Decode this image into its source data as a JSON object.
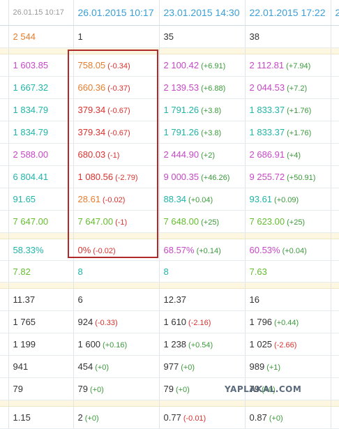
{
  "header": [
    "26.01.15 10:17",
    "26.01.2015 10:17",
    "23.01.2015 14:30",
    "22.01.2015 17:22"
  ],
  "section1": [
    {
      "cells": [
        {
          "v": "2 544",
          "c": "orange"
        },
        {
          "v": "1",
          "c": "dark"
        },
        {
          "v": "35",
          "c": "dark"
        },
        {
          "v": "38",
          "c": "dark"
        }
      ]
    }
  ],
  "section2": [
    {
      "cells": [
        {
          "v": "1 603.85",
          "c": "purple"
        },
        {
          "v": "758.05",
          "d": "(-0.34)",
          "c": "orange",
          "dc": "red"
        },
        {
          "v": "2 100.42",
          "d": "(+6.91)",
          "c": "purple",
          "dc": "dgreen"
        },
        {
          "v": "2 112.81",
          "d": "(+7.94)",
          "c": "purple",
          "dc": "dgreen"
        }
      ]
    },
    {
      "cells": [
        {
          "v": "1 667.32",
          "c": "teal"
        },
        {
          "v": "660.36",
          "d": "(-0.37)",
          "c": "orange",
          "dc": "red"
        },
        {
          "v": "2 139.53",
          "d": "(+6.88)",
          "c": "purple",
          "dc": "dgreen"
        },
        {
          "v": "2 044.53",
          "d": "(+7.2)",
          "c": "purple",
          "dc": "dgreen"
        }
      ]
    },
    {
      "cells": [
        {
          "v": "1 834.79",
          "c": "teal"
        },
        {
          "v": "379.34",
          "d": "(-0.67)",
          "c": "red",
          "dc": "red"
        },
        {
          "v": "1 791.26",
          "d": "(+3.8)",
          "c": "teal",
          "dc": "dgreen"
        },
        {
          "v": "1 833.37",
          "d": "(+1.76)",
          "c": "teal",
          "dc": "dgreen"
        }
      ]
    },
    {
      "cells": [
        {
          "v": "1 834.79",
          "c": "teal"
        },
        {
          "v": "379.34",
          "d": "(-0.67)",
          "c": "red",
          "dc": "red"
        },
        {
          "v": "1 791.26",
          "d": "(+3.8)",
          "c": "teal",
          "dc": "dgreen"
        },
        {
          "v": "1 833.37",
          "d": "(+1.76)",
          "c": "teal",
          "dc": "dgreen"
        }
      ]
    },
    {
      "cells": [
        {
          "v": "2 588.00",
          "c": "purple"
        },
        {
          "v": "680.03",
          "d": "(-1)",
          "c": "red",
          "dc": "red"
        },
        {
          "v": "2 444.90",
          "d": "(+2)",
          "c": "purple",
          "dc": "dgreen"
        },
        {
          "v": "2 686.91",
          "d": "(+4)",
          "c": "purple",
          "dc": "dgreen"
        }
      ]
    },
    {
      "cells": [
        {
          "v": "6 804.41",
          "c": "teal"
        },
        {
          "v": "1 080.56",
          "d": "(-2.79)",
          "c": "red",
          "dc": "red"
        },
        {
          "v": "9 000.35",
          "d": "(+46.26)",
          "c": "purple",
          "dc": "dgreen"
        },
        {
          "v": "9 255.72",
          "d": "(+50.91)",
          "c": "purple",
          "dc": "dgreen"
        }
      ]
    },
    {
      "cells": [
        {
          "v": "91.65",
          "c": "teal"
        },
        {
          "v": "28.61",
          "d": "(-0.02)",
          "c": "orange",
          "dc": "red"
        },
        {
          "v": "88.34",
          "d": "(+0.04)",
          "c": "teal",
          "dc": "dgreen"
        },
        {
          "v": "93.61",
          "d": "(+0.09)",
          "c": "teal",
          "dc": "dgreen"
        }
      ]
    },
    {
      "cells": [
        {
          "v": "7 647.00",
          "c": "green"
        },
        {
          "v": "7 647.00",
          "d": "(-1)",
          "c": "green",
          "dc": "red"
        },
        {
          "v": "7 648.00",
          "d": "(+25)",
          "c": "green",
          "dc": "dgreen"
        },
        {
          "v": "7 623.00",
          "d": "(+25)",
          "c": "green",
          "dc": "dgreen"
        }
      ]
    }
  ],
  "section3": [
    {
      "cells": [
        {
          "v": "58.33%",
          "c": "teal"
        },
        {
          "v": "0%",
          "d": "(-0.02)",
          "c": "red",
          "dc": "red"
        },
        {
          "v": "68.57%",
          "d": "(+0.14)",
          "c": "purple",
          "dc": "dgreen"
        },
        {
          "v": "60.53%",
          "d": "(+0.04)",
          "c": "purple",
          "dc": "dgreen"
        }
      ]
    },
    {
      "cells": [
        {
          "v": "7.82",
          "c": "green"
        },
        {
          "v": "8",
          "c": "teal"
        },
        {
          "v": "8",
          "c": "teal"
        },
        {
          "v": "7.63",
          "c": "green"
        }
      ]
    }
  ],
  "section4": [
    {
      "cells": [
        {
          "v": "11.37",
          "c": "dark"
        },
        {
          "v": "6",
          "c": "dark"
        },
        {
          "v": "12.37",
          "c": "dark"
        },
        {
          "v": "16",
          "c": "dark"
        }
      ]
    },
    {
      "cells": [
        {
          "v": "1 765",
          "c": "dark"
        },
        {
          "v": "924",
          "d": "(-0.33)",
          "c": "dark",
          "dc": "red"
        },
        {
          "v": "1 610",
          "d": "(-2.16)",
          "c": "dark",
          "dc": "red"
        },
        {
          "v": "1 796",
          "d": "(+0.44)",
          "c": "dark",
          "dc": "dgreen"
        }
      ]
    },
    {
      "cells": [
        {
          "v": "1 199",
          "c": "dark"
        },
        {
          "v": "1 600",
          "d": "(+0.16)",
          "c": "dark",
          "dc": "dgreen"
        },
        {
          "v": "1 238",
          "d": "(+0.54)",
          "c": "dark",
          "dc": "dgreen"
        },
        {
          "v": "1 025",
          "d": "(-2.66)",
          "c": "dark",
          "dc": "red"
        }
      ]
    },
    {
      "cells": [
        {
          "v": "941",
          "c": "dark"
        },
        {
          "v": "454",
          "d": "(+0)",
          "c": "dark",
          "dc": "dgreen"
        },
        {
          "v": "977",
          "d": "(+0)",
          "c": "dark",
          "dc": "dgreen"
        },
        {
          "v": "989",
          "d": "(+1)",
          "c": "dark",
          "dc": "dgreen"
        }
      ]
    },
    {
      "cells": [
        {
          "v": "79",
          "c": "dark"
        },
        {
          "v": "79",
          "d": "(+0)",
          "c": "dark",
          "dc": "dgreen"
        },
        {
          "v": "79",
          "d": "(+0)",
          "c": "dark",
          "dc": "dgreen"
        },
        {
          "v": "79",
          "d": "(+0)",
          "c": "dark",
          "dc": "dgreen"
        }
      ]
    }
  ],
  "section5": [
    {
      "cells": [
        {
          "v": "1.15",
          "c": "dark"
        },
        {
          "v": "2",
          "d": "(+0)",
          "c": "dark",
          "dc": "dgreen"
        },
        {
          "v": "0.77",
          "d": "(-0.01)",
          "c": "dark",
          "dc": "red"
        },
        {
          "v": "0.87",
          "d": "(+0)",
          "c": "dark",
          "dc": "dgreen"
        }
      ]
    }
  ],
  "watermark": "YAPLAKAL.COM"
}
